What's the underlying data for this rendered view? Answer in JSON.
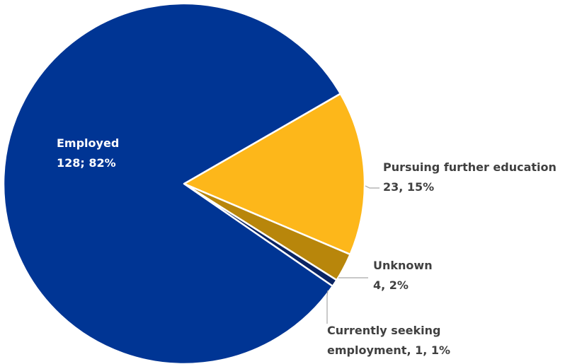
{
  "chart_data": {
    "type": "pie",
    "slices": [
      {
        "label": "Employed",
        "value": 128,
        "percent": "82%",
        "label_line1": "Employed",
        "label_line2": "128; 82%",
        "color": "#003594"
      },
      {
        "label": "Pursuing further education",
        "value": 23,
        "percent": "15%",
        "label_line1": "Pursuing further education",
        "label_line2": "23, 15%",
        "color": "#FDB71A"
      },
      {
        "label": "Unknown",
        "value": 4,
        "percent": "2%",
        "label_line1": "Unknown",
        "label_line2": "4, 2%",
        "color": "#B8860B"
      },
      {
        "label": "Currently seeking employment",
        "value": 1,
        "percent": "1%",
        "label_line1": "Currently seeking",
        "label_line2": "employment, 1, 1%",
        "color": "#0A2463"
      }
    ]
  },
  "colors": {
    "background": "#ffffff",
    "label_light": "#ffffff",
    "label_dark": "#404040",
    "leader_line": "#A6A6A6"
  }
}
